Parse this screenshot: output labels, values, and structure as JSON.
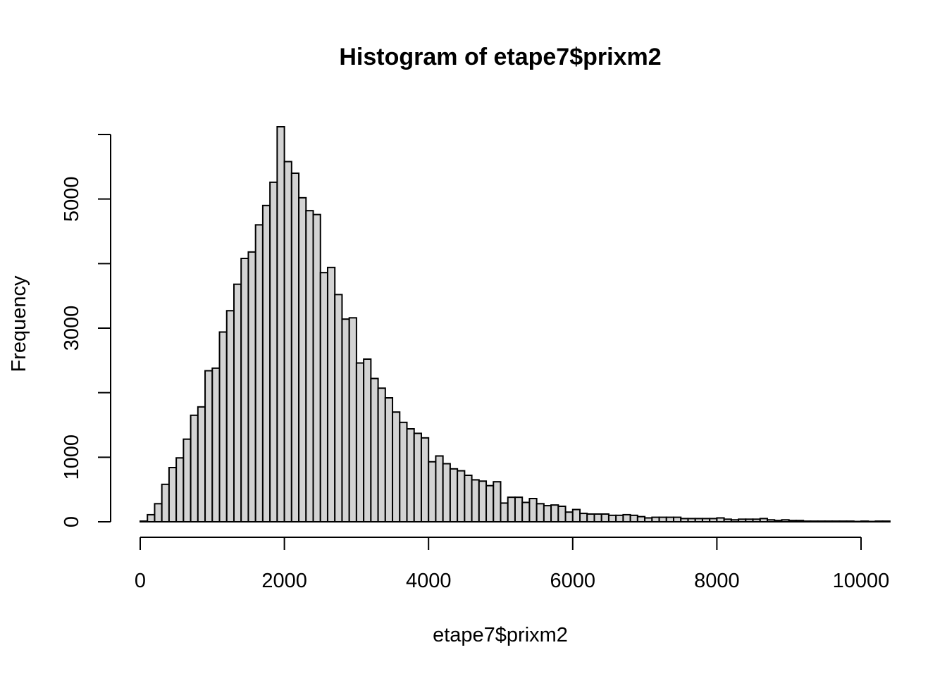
{
  "chart_data": {
    "type": "bar",
    "title": "Histogram of etape7$prixm2",
    "xlabel": "etape7$prixm2",
    "ylabel": "Frequency",
    "bin_width": 100,
    "xlim": [
      0,
      10400
    ],
    "ylim": [
      0,
      6000
    ],
    "x_ticks": [
      0,
      2000,
      4000,
      6000,
      8000,
      10000
    ],
    "x_tick_labels": [
      "0",
      "2000",
      "4000",
      "6000",
      "8000",
      "10000"
    ],
    "y_ticks": [
      0,
      1000,
      2000,
      3000,
      4000,
      5000,
      6000
    ],
    "y_tick_labels": [
      "0",
      "1000",
      "",
      "3000",
      "",
      "5000",
      ""
    ],
    "bin_starts": [
      0,
      100,
      200,
      300,
      400,
      500,
      600,
      700,
      800,
      900,
      1000,
      1100,
      1200,
      1300,
      1400,
      1500,
      1600,
      1700,
      1800,
      1900,
      2000,
      2100,
      2200,
      2300,
      2400,
      2500,
      2600,
      2700,
      2800,
      2900,
      3000,
      3100,
      3200,
      3300,
      3400,
      3500,
      3600,
      3700,
      3800,
      3900,
      4000,
      4100,
      4200,
      4300,
      4400,
      4500,
      4600,
      4700,
      4800,
      4900,
      5000,
      5100,
      5200,
      5300,
      5400,
      5500,
      5600,
      5700,
      5800,
      5900,
      6000,
      6100,
      6200,
      6300,
      6400,
      6500,
      6600,
      6700,
      6800,
      6900,
      7000,
      7100,
      7200,
      7300,
      7400,
      7500,
      7600,
      7700,
      7800,
      7900,
      8000,
      8100,
      8200,
      8300,
      8400,
      8500,
      8600,
      8700,
      8800,
      8900,
      9000,
      9100,
      9200,
      9300,
      9400,
      9500,
      9600,
      9700,
      9800,
      9900,
      10000,
      10100,
      10200,
      10300
    ],
    "values": [
      10,
      110,
      280,
      580,
      840,
      990,
      1280,
      1650,
      1780,
      2340,
      2380,
      2940,
      3270,
      3680,
      4080,
      4180,
      4600,
      4900,
      5260,
      6120,
      5580,
      5400,
      5020,
      4820,
      4760,
      3860,
      3940,
      3520,
      3140,
      3160,
      2460,
      2520,
      2220,
      2070,
      1920,
      1700,
      1540,
      1440,
      1370,
      1300,
      930,
      1020,
      900,
      820,
      790,
      720,
      650,
      630,
      560,
      620,
      290,
      380,
      380,
      300,
      360,
      280,
      250,
      260,
      240,
      150,
      190,
      130,
      120,
      120,
      120,
      100,
      100,
      110,
      100,
      80,
      60,
      70,
      70,
      70,
      70,
      50,
      50,
      50,
      50,
      50,
      60,
      40,
      30,
      40,
      40,
      40,
      50,
      30,
      20,
      30,
      20,
      20,
      10,
      10,
      10,
      10,
      10,
      10,
      10,
      5,
      10,
      5,
      10,
      10
    ]
  }
}
